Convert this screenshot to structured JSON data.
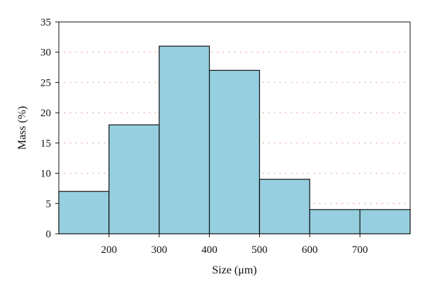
{
  "chart_data": {
    "type": "bar",
    "title": "",
    "xlabel": "Size (μm)",
    "ylabel": "Mass (%)",
    "bins": [
      {
        "from": 100,
        "to": 200,
        "value": 7
      },
      {
        "from": 200,
        "to": 300,
        "value": 18
      },
      {
        "from": 300,
        "to": 400,
        "value": 31
      },
      {
        "from": 400,
        "to": 500,
        "value": 27
      },
      {
        "from": 500,
        "to": 600,
        "value": 9
      },
      {
        "from": 600,
        "to": 700,
        "value": 4
      },
      {
        "from": 700,
        "to": 800,
        "value": 4
      }
    ],
    "xlim": [
      100,
      800
    ],
    "ylim": [
      0,
      35
    ],
    "x_ticks": [
      "200",
      "300",
      "400",
      "500",
      "600",
      "700"
    ],
    "y_ticks": [
      "0",
      "5",
      "10",
      "15",
      "20",
      "25",
      "30",
      "35"
    ],
    "grid": "horizontal dotted",
    "bar_color": "#95cfe0",
    "grid_color": "#e06a7a"
  }
}
